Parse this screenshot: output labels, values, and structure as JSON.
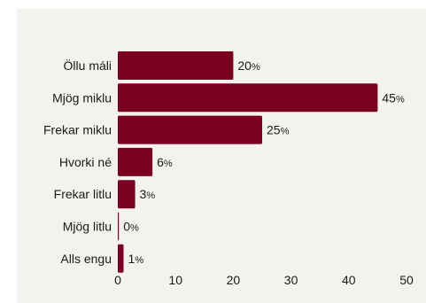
{
  "chart_data": {
    "type": "bar",
    "orientation": "horizontal",
    "title": "",
    "xlabel": "",
    "ylabel": "",
    "categories": [
      "Öllu máli",
      "Mjög miklu",
      "Frekar miklu",
      "Hvorki né",
      "Frekar litlu",
      "Mjög litlu",
      "Alls engu"
    ],
    "values": [
      20,
      45,
      25,
      6,
      3,
      0,
      1
    ],
    "value_suffix": "%",
    "xlim": [
      0,
      50
    ],
    "xticks": [
      "0",
      "10",
      "20",
      "30",
      "40",
      "50"
    ],
    "grid": false,
    "bar_color": "#7a0020",
    "background_color": "#f3f2ee"
  }
}
